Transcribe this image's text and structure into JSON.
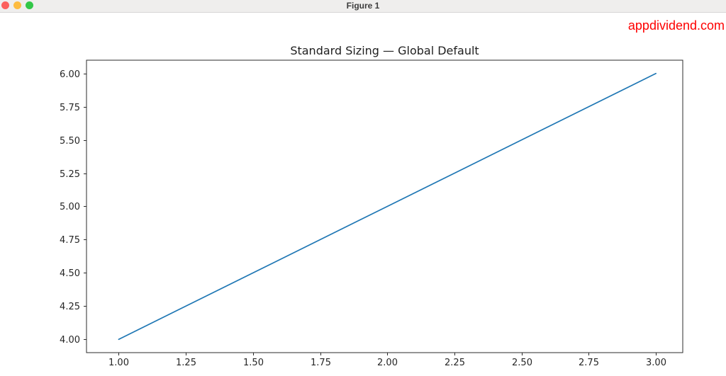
{
  "window": {
    "title": "Figure 1",
    "traffic_lights": [
      {
        "name": "close-button",
        "color": "#fc605c"
      },
      {
        "name": "minimize-button",
        "color": "#fdbc40"
      },
      {
        "name": "zoom-button",
        "color": "#33c748"
      }
    ]
  },
  "watermark": {
    "text": "appdividend.com",
    "color": "#fe0000"
  },
  "chart_data": {
    "type": "line",
    "title": "Standard Sizing — Global Default",
    "x": [
      1,
      2,
      3
    ],
    "y": [
      4,
      5,
      6
    ],
    "xlim": [
      0.88,
      3.1
    ],
    "ylim": [
      3.9,
      6.1
    ],
    "xticks": [
      1.0,
      1.25,
      1.5,
      1.75,
      2.0,
      2.25,
      2.5,
      2.75,
      3.0
    ],
    "xtick_labels": [
      "1.00",
      "1.25",
      "1.50",
      "1.75",
      "2.00",
      "2.25",
      "2.50",
      "2.75",
      "3.00"
    ],
    "yticks": [
      4.0,
      4.25,
      4.5,
      4.75,
      5.0,
      5.25,
      5.5,
      5.75,
      6.0
    ],
    "ytick_labels": [
      "4.00",
      "4.25",
      "4.50",
      "4.75",
      "5.00",
      "5.25",
      "5.50",
      "5.75",
      "6.00"
    ],
    "xlabel": "",
    "ylabel": "",
    "grid": false,
    "legend": null,
    "line_color": "#1f77b4",
    "spine_color": "#2b2b2b"
  }
}
